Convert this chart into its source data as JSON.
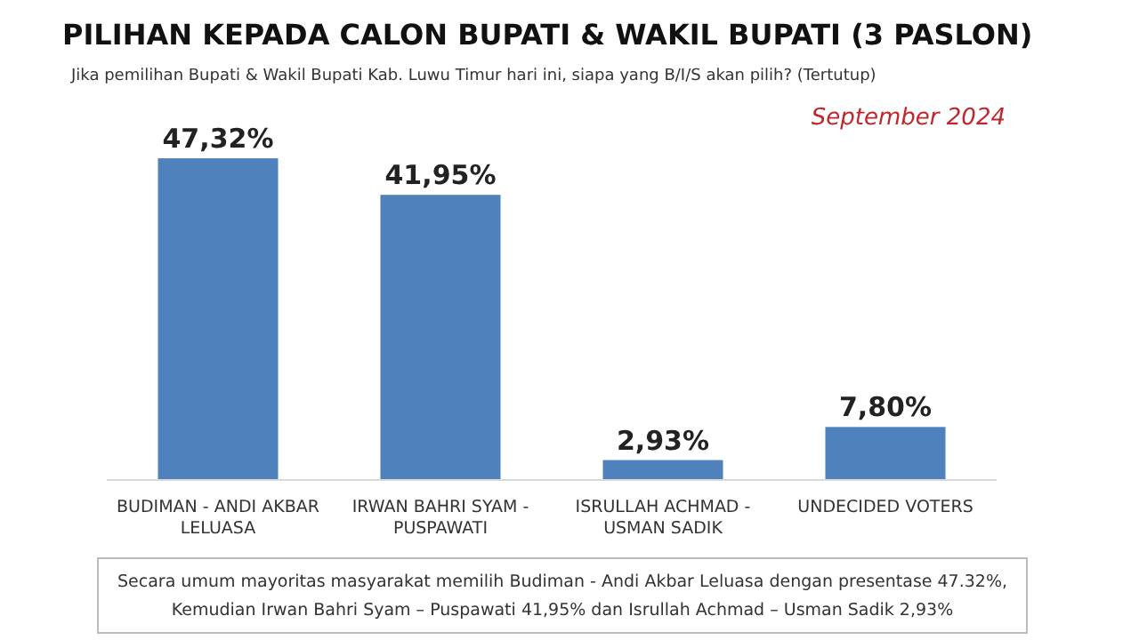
{
  "chart_data": {
    "type": "bar",
    "title": "PILIHAN KEPADA CALON BUPATI & WAKIL BUPATI (3 PASLON)",
    "subtitle": "Jika pemilihan Bupati & Wakil Bupati Kab. Luwu Timur hari ini, siapa yang B/I/S akan pilih? (Tertutup)",
    "categories": [
      "BUDIMAN  - ANDI AKBAR LELUASA",
      "IRWAN BAHRI SYAM - PUSPAWATI",
      "ISRULLAH ACHMAD - USMAN SADIK",
      "UNDECIDED VOTERS"
    ],
    "values": [
      47.32,
      41.95,
      2.93,
      7.8
    ],
    "color": "#4f81bd",
    "value_labels": [
      "47,32%",
      "41,95%",
      "2,93%",
      "7,80%"
    ],
    "annotations": [
      "September 2024",
      "Secara umum mayoritas masyarakat memilih Budiman - Andi Akbar Leluasa dengan presentase 47.32%,",
      "Kemudian Irwan Bahri Syam – Puspawati 41,95% dan Isrullah Achmad – Usman Sadik 2,93%"
    ],
    "grid": false
  }
}
